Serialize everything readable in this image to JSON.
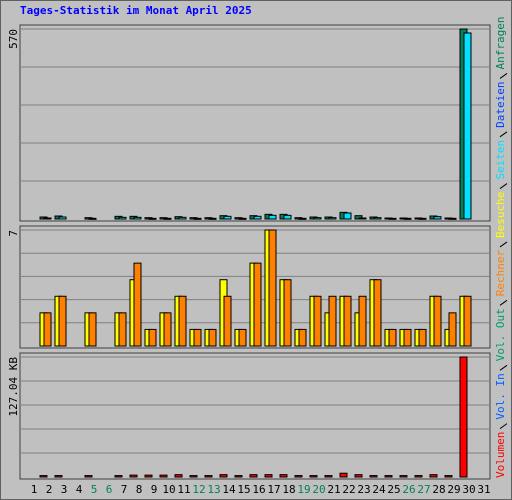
{
  "chart_data": {
    "type": "bar",
    "title": "Tages-Statistik im Monat April 2025",
    "title_color": "#0000ff",
    "categories": [
      "1",
      "2",
      "3",
      "4",
      "5",
      "6",
      "7",
      "8",
      "9",
      "10",
      "11",
      "12",
      "13",
      "14",
      "15",
      "16",
      "17",
      "18",
      "19",
      "20",
      "21",
      "22",
      "23",
      "24",
      "25",
      "26",
      "27",
      "28",
      "29",
      "30",
      "31"
    ],
    "category_colors": [
      "#000000",
      "#000000",
      "#000000",
      "#000000",
      "#00805c",
      "#00805c",
      "#000000",
      "#000000",
      "#000000",
      "#000000",
      "#000000",
      "#00805c",
      "#00805c",
      "#000000",
      "#000000",
      "#000000",
      "#000000",
      "#000000",
      "#00805c",
      "#00805c",
      "#000000",
      "#000000",
      "#000000",
      "#000000",
      "#000000",
      "#00805c",
      "#00805c",
      "#000000",
      "#000000",
      "#000000",
      "#000000"
    ],
    "panels": [
      {
        "ylim": [
          0,
          570
        ],
        "yticks": [
          570
        ],
        "series": [
          {
            "name": "Anfragen",
            "color": "#00805c",
            "values": [
              null,
              6,
              9,
              null,
              4,
              null,
              8,
              8,
              4,
              4,
              7,
              4,
              4,
              10,
              4,
              10,
              14,
              14,
              4,
              6,
              6,
              20,
              10,
              6,
              3,
              3,
              3,
              9,
              3,
              570,
              null
            ]
          },
          {
            "name": "Dateien",
            "color": "#0040ff"
          },
          {
            "name": "Seiten",
            "color": "#00e0ff",
            "values": [
              null,
              3,
              6,
              null,
              2,
              null,
              5,
              5,
              2,
              2,
              5,
              2,
              2,
              8,
              2,
              8,
              11,
              11,
              2,
              4,
              4,
              18,
              3,
              4,
              2,
              2,
              2,
              7,
              2,
              558,
              null
            ]
          }
        ]
      },
      {
        "ylim": [
          0,
          7
        ],
        "yticks": [
          7
        ],
        "series": [
          {
            "name": "Besuche",
            "color": "#ffff00",
            "values": [
              null,
              2,
              3,
              null,
              2,
              null,
              2,
              4,
              1,
              2,
              3,
              1,
              1,
              4,
              1,
              5,
              7,
              4,
              1,
              3,
              2,
              3,
              2,
              4,
              1,
              1,
              1,
              3,
              1,
              3,
              null
            ]
          },
          {
            "name": "Rechner",
            "color": "#ff8000",
            "values": [
              null,
              2,
              3,
              null,
              2,
              null,
              2,
              5,
              1,
              2,
              3,
              1,
              1,
              3,
              1,
              5,
              7,
              4,
              1,
              3,
              3,
              3,
              3,
              4,
              1,
              1,
              1,
              3,
              2,
              3,
              null
            ]
          }
        ]
      },
      {
        "ylim": [
          0,
          127.04
        ],
        "yticks": [
          {
            "value": 127.04,
            "label": "127.04 KB"
          }
        ],
        "series": [
          {
            "name": "Vol. Out",
            "color": "#00a060"
          },
          {
            "name": "Vol. In",
            "color": "#0060ff"
          },
          {
            "name": "Volumen",
            "color": "#ff0000",
            "values": [
              null,
              1.5,
              1.5,
              null,
              1.5,
              null,
              1.5,
              2,
              2,
              2,
              2.5,
              1.5,
              1.5,
              2.5,
              1.5,
              2.5,
              2.5,
              2.5,
              1.5,
              1.5,
              1.5,
              4,
              2.5,
              1.5,
              1.5,
              1.5,
              1.5,
              2.5,
              1.5,
              127.04,
              null
            ]
          }
        ]
      }
    ]
  }
}
